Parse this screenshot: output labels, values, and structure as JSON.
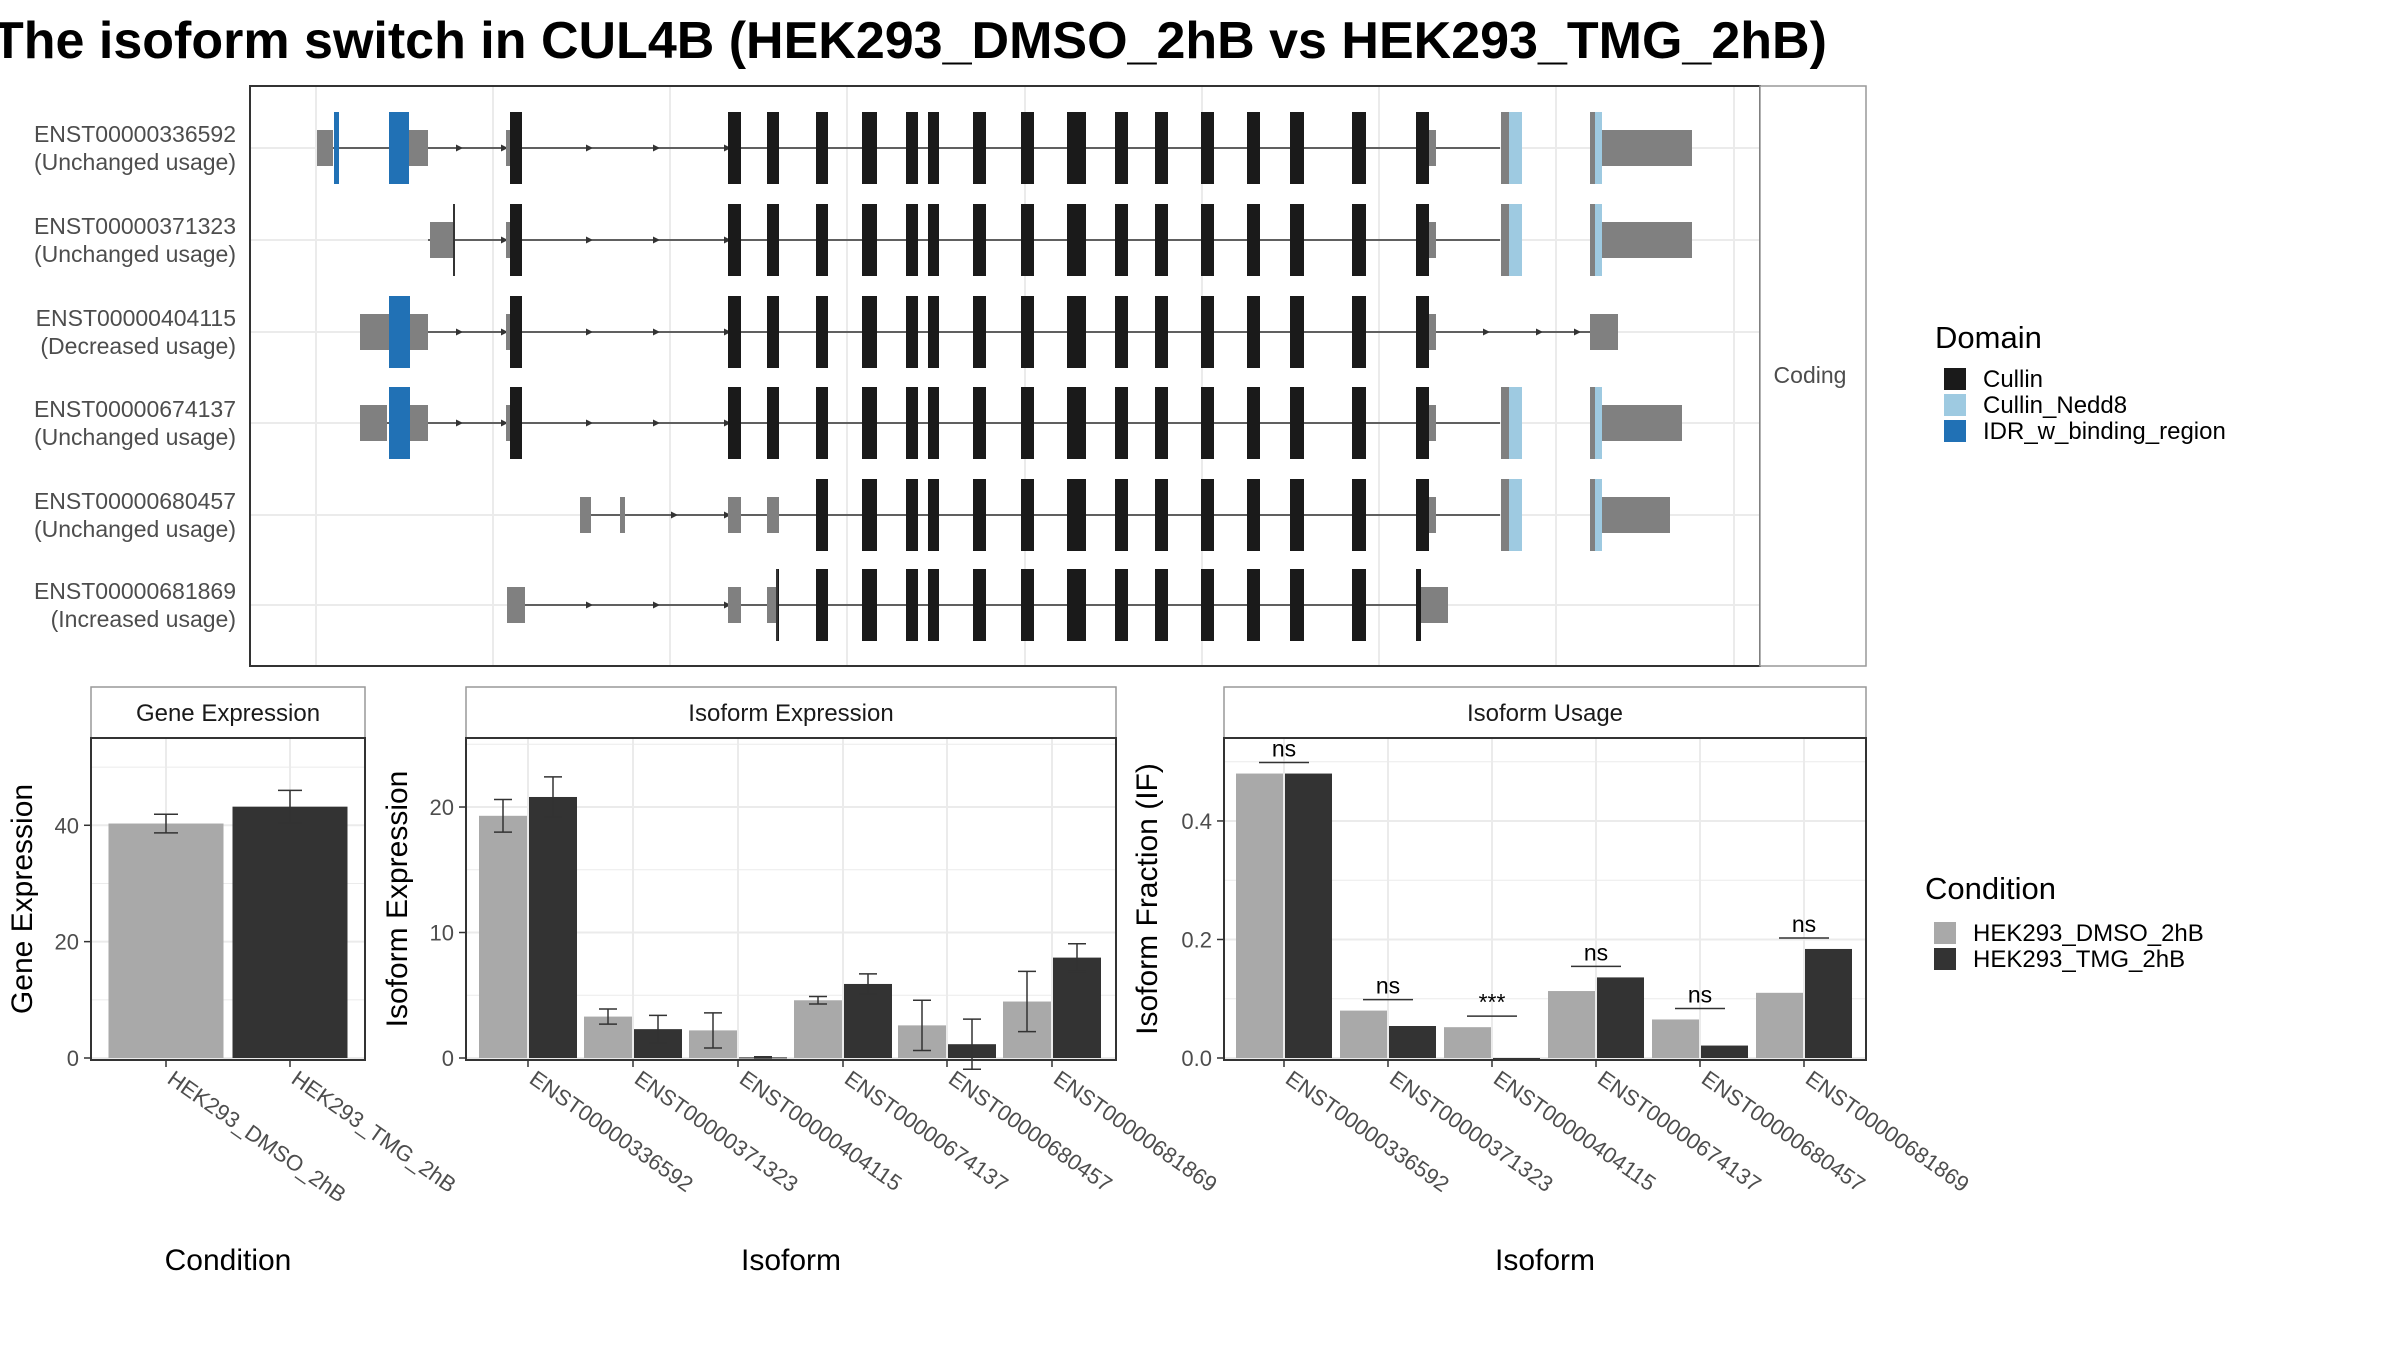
{
  "title": "The isoform switch in CUL4B (HEK293_DMSO_2hB vs HEK293_TMG_2hB)",
  "colors": {
    "utr": "#808080",
    "cds": "#1a1a1a",
    "intron": "#333333",
    "cullin": "#1a1a1a",
    "cullin_nedd8": "#9ecae1",
    "idr": "#2171b5",
    "dmso": "#a9a9a9",
    "tmg": "#333333",
    "grid": "#ebebeb",
    "panel_border": "#333333",
    "strip_border": "#999999",
    "strip_bg": "#ffffff"
  },
  "transcript_panel": {
    "strip_label": "Coding",
    "tracks": [
      {
        "id": "ENST00000336592",
        "usage": "(Unchanged usage)"
      },
      {
        "id": "ENST00000371323",
        "usage": "(Unchanged usage)"
      },
      {
        "id": "ENST00000404115",
        "usage": "(Decreased usage)"
      },
      {
        "id": "ENST00000674137",
        "usage": "(Unchanged usage)"
      },
      {
        "id": "ENST00000680457",
        "usage": "(Unchanged usage)"
      },
      {
        "id": "ENST00000681869",
        "usage": "(Increased usage)"
      }
    ]
  },
  "domain_legend": {
    "title": "Domain",
    "items": [
      {
        "label": "Cullin",
        "color": "#1a1a1a"
      },
      {
        "label": "Cullin_Nedd8",
        "color": "#9ecae1"
      },
      {
        "label": "IDR_w_binding_region",
        "color": "#2171b5"
      }
    ]
  },
  "condition_legend": {
    "title": "Condition",
    "items": [
      {
        "label": "HEK293_DMSO_2hB",
        "color": "#a9a9a9"
      },
      {
        "label": "HEK293_TMG_2hB",
        "color": "#333333"
      }
    ]
  },
  "chart_data": [
    {
      "type": "bar",
      "panel": "Gene Expression",
      "xlabel": "Condition",
      "ylabel": "Gene Expression",
      "ylim": [
        0,
        55
      ],
      "yticks": [
        0,
        20,
        40
      ],
      "categories": [
        "HEK293_DMSO_2hB",
        "HEK293_TMG_2hB"
      ],
      "values": [
        40.3,
        43.2
      ],
      "errors": [
        1.6,
        2.8
      ],
      "grid": true
    },
    {
      "type": "bar",
      "panel": "Isoform Expression",
      "xlabel": "Isoform",
      "ylabel": "Isoform Expression",
      "ylim": [
        0,
        25.5
      ],
      "yticks": [
        0,
        10,
        20
      ],
      "categories": [
        "ENST00000336592",
        "ENST00000371323",
        "ENST00000404115",
        "ENST00000674137",
        "ENST00000680457",
        "ENST00000681869"
      ],
      "series": [
        {
          "name": "HEK293_DMSO_2hB",
          "values": [
            19.3,
            3.3,
            2.2,
            4.6,
            2.6,
            4.5
          ],
          "errors": [
            1.3,
            0.6,
            1.4,
            0.3,
            2.0,
            2.4
          ]
        },
        {
          "name": "HEK293_TMG_2hB",
          "values": [
            20.8,
            2.3,
            0.05,
            5.9,
            1.1,
            8.0
          ],
          "errors": [
            1.6,
            1.1,
            0.05,
            0.8,
            2.0,
            1.1
          ]
        }
      ],
      "grid": true
    },
    {
      "type": "bar",
      "panel": "Isoform Usage",
      "xlabel": "Isoform",
      "ylabel": "Isoform Fraction (IF)",
      "ylim": [
        0,
        0.54
      ],
      "yticks": [
        0.0,
        0.2,
        0.4
      ],
      "ytick_labels": [
        "0.0",
        "0.2",
        "0.4"
      ],
      "categories": [
        "ENST00000336592",
        "ENST00000371323",
        "ENST00000404115",
        "ENST00000674137",
        "ENST00000680457",
        "ENST00000681869"
      ],
      "series": [
        {
          "name": "HEK293_DMSO_2hB",
          "values": [
            0.48,
            0.08,
            0.052,
            0.113,
            0.065,
            0.11
          ]
        },
        {
          "name": "HEK293_TMG_2hB",
          "values": [
            0.48,
            0.054,
            0.0,
            0.136,
            0.021,
            0.184
          ]
        }
      ],
      "significance": [
        "ns",
        "ns",
        "***",
        "ns",
        "ns",
        "ns"
      ],
      "grid": true
    }
  ]
}
